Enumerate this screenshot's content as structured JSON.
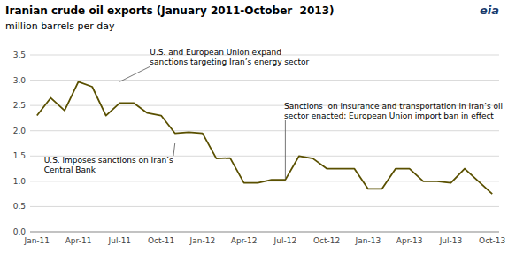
{
  "chart_data": {
    "type": "line",
    "title": "Iranian crude oil exports (January 2011-October  2013)",
    "subtitle": "million barrels per day",
    "logo": "eia",
    "color": "#5a5000",
    "grid": true,
    "categories": [
      "Jan-11",
      null,
      null,
      "Apr-11",
      null,
      null,
      "Jul-11",
      null,
      null,
      "Oct-11",
      null,
      null,
      "Jan-12",
      null,
      null,
      "Apr-12",
      null,
      null,
      "Jul-12",
      null,
      null,
      "Oct-12",
      null,
      null,
      "Jan-13",
      null,
      null,
      "Apr-13",
      null,
      null,
      "Jul-13",
      null,
      null,
      "Oct-13"
    ],
    "values": [
      2.3,
      2.65,
      2.4,
      2.97,
      2.87,
      2.3,
      2.55,
      2.55,
      2.35,
      2.3,
      1.95,
      1.97,
      1.95,
      1.45,
      1.46,
      0.97,
      0.97,
      1.03,
      1.03,
      1.5,
      1.45,
      1.25,
      1.25,
      1.25,
      0.85,
      0.85,
      1.25,
      1.25,
      1.0,
      1.0,
      0.97,
      1.25,
      1.0,
      0.75
    ],
    "ylim": [
      0.0,
      3.5
    ],
    "yticks": [
      {
        "value": 0.0,
        "label": "0.0"
      },
      0.5,
      {
        "value": 1.0,
        "label": "1.0"
      },
      1.5,
      {
        "value": 2.0,
        "label": "2.0"
      },
      2.5,
      {
        "value": 3.0,
        "label": "3.0"
      },
      3.5
    ],
    "annotations": [
      {
        "text": "U.S. and European Union expand\nsanctions targeting Iran’s energy sector",
        "x": 6,
        "y": 2.97
      },
      {
        "text": "U.S. imposes sanctions on Iran’s\nCentral Bank",
        "x": 10,
        "y": 1.75
      },
      {
        "text": "Sanctions  on insurance and transportation in Iran’s oil\nsector enacted; European Union import ban in effect",
        "x": 18,
        "y": 1.05
      }
    ]
  }
}
